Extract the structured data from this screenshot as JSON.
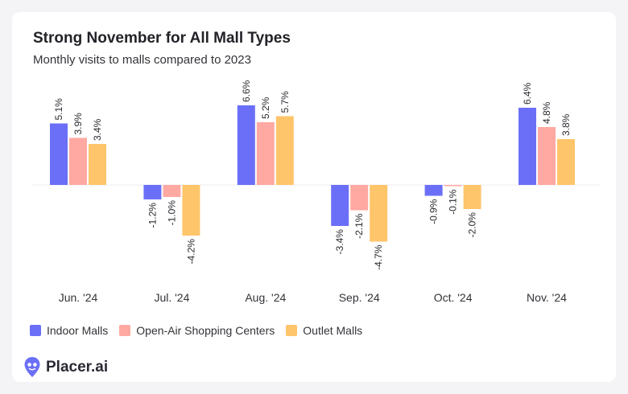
{
  "chart_data": {
    "type": "bar",
    "title": "Strong November for All Mall Types",
    "subtitle": "Monthly visits to malls compared to 2023",
    "categories": [
      "Jun. '24",
      "Jul. '24",
      "Aug. '24",
      "Sep. '24",
      "Oct. '24",
      "Nov. '24"
    ],
    "series": [
      {
        "name": "Indoor Malls",
        "color": "#6b6ff7",
        "values": [
          5.1,
          -1.2,
          6.6,
          -3.4,
          -0.9,
          6.4
        ],
        "labels": [
          "5.1%",
          "-1.2%",
          "6.6%",
          "-3.4%",
          "-0.9%",
          "6.4%"
        ]
      },
      {
        "name": "Open-Air Shopping Centers",
        "color": "#ffa9a2",
        "values": [
          3.9,
          -1.0,
          5.2,
          -2.1,
          -0.1,
          4.8
        ],
        "labels": [
          "3.9%",
          "-1.0%",
          "5.2%",
          "-2.1%",
          "-0.1%",
          "4.8%"
        ]
      },
      {
        "name": "Outlet Malls",
        "color": "#ffc56b",
        "values": [
          3.4,
          -4.2,
          5.7,
          -4.7,
          -2.0,
          3.8
        ],
        "labels": [
          "3.4%",
          "-4.2%",
          "5.7%",
          "-4.7%",
          "-2.0%",
          "3.8%"
        ]
      }
    ],
    "ylim": [
      -4.7,
      6.6
    ],
    "grid": false,
    "legend": "bottom-left"
  },
  "brand": {
    "name": "Placer.ai",
    "logo_icon": "placer-pin-icon",
    "color": "#6b6ff7"
  }
}
